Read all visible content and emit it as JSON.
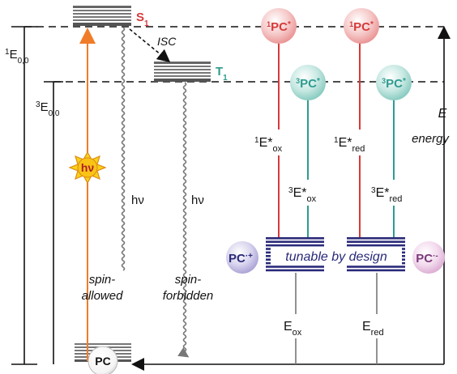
{
  "colors": {
    "orange": "#f07c2a",
    "red": "#d63a3a",
    "teal": "#2e9c8f",
    "navy": "#2a2a7a",
    "gray": "#777777",
    "black": "#111111",
    "sun": "#f6d21a"
  },
  "states": {
    "s1": {
      "main": "S",
      "sub": "1"
    },
    "t1": {
      "main": "T",
      "sub": "1"
    },
    "ground": "PC"
  },
  "left_labels": {
    "singlet_energy": {
      "sup": "1",
      "main": "E",
      "sub": "0,0"
    },
    "triplet_energy": {
      "sup": "3",
      "main": "E",
      "sub": "0,0"
    },
    "isc": "ISC",
    "hv_badge": "hν",
    "hv_emission_1": "hν",
    "hv_emission_2": "hν",
    "spin_allowed_1": "spin-",
    "spin_allowed_2": "allowed",
    "spin_forbidden_1": "spin-",
    "spin_forbidden_2": "forbidden"
  },
  "right_labels": {
    "circle_1pc_ox": {
      "sup": "1",
      "main": "PC",
      "star": "*"
    },
    "circle_1pc_red": {
      "sup": "1",
      "main": "PC",
      "star": "*"
    },
    "circle_3pc_ox": {
      "sup": "3",
      "main": "PC",
      "star": "*"
    },
    "circle_3pc_red": {
      "sup": "3",
      "main": "PC",
      "star": "*"
    },
    "e1_ox": {
      "sup": "1",
      "main": "E*",
      "sub": "ox"
    },
    "e3_ox": {
      "sup": "3",
      "main": "E*",
      "sub": "ox"
    },
    "e1_red": {
      "sup": "1",
      "main": "E*",
      "sub": "red"
    },
    "e3_red": {
      "sup": "3",
      "main": "E*",
      "sub": "red"
    },
    "pc_cation": {
      "main": "PC",
      "sup": "·+"
    },
    "pc_anion": {
      "main": "PC",
      "sup": "·-"
    },
    "tunable": "tunable by design",
    "e_ox": {
      "main": "E",
      "sub": "ox"
    },
    "e_red": {
      "main": "E",
      "sub": "red"
    },
    "energy_axis": "E",
    "energy_word": "energy"
  }
}
